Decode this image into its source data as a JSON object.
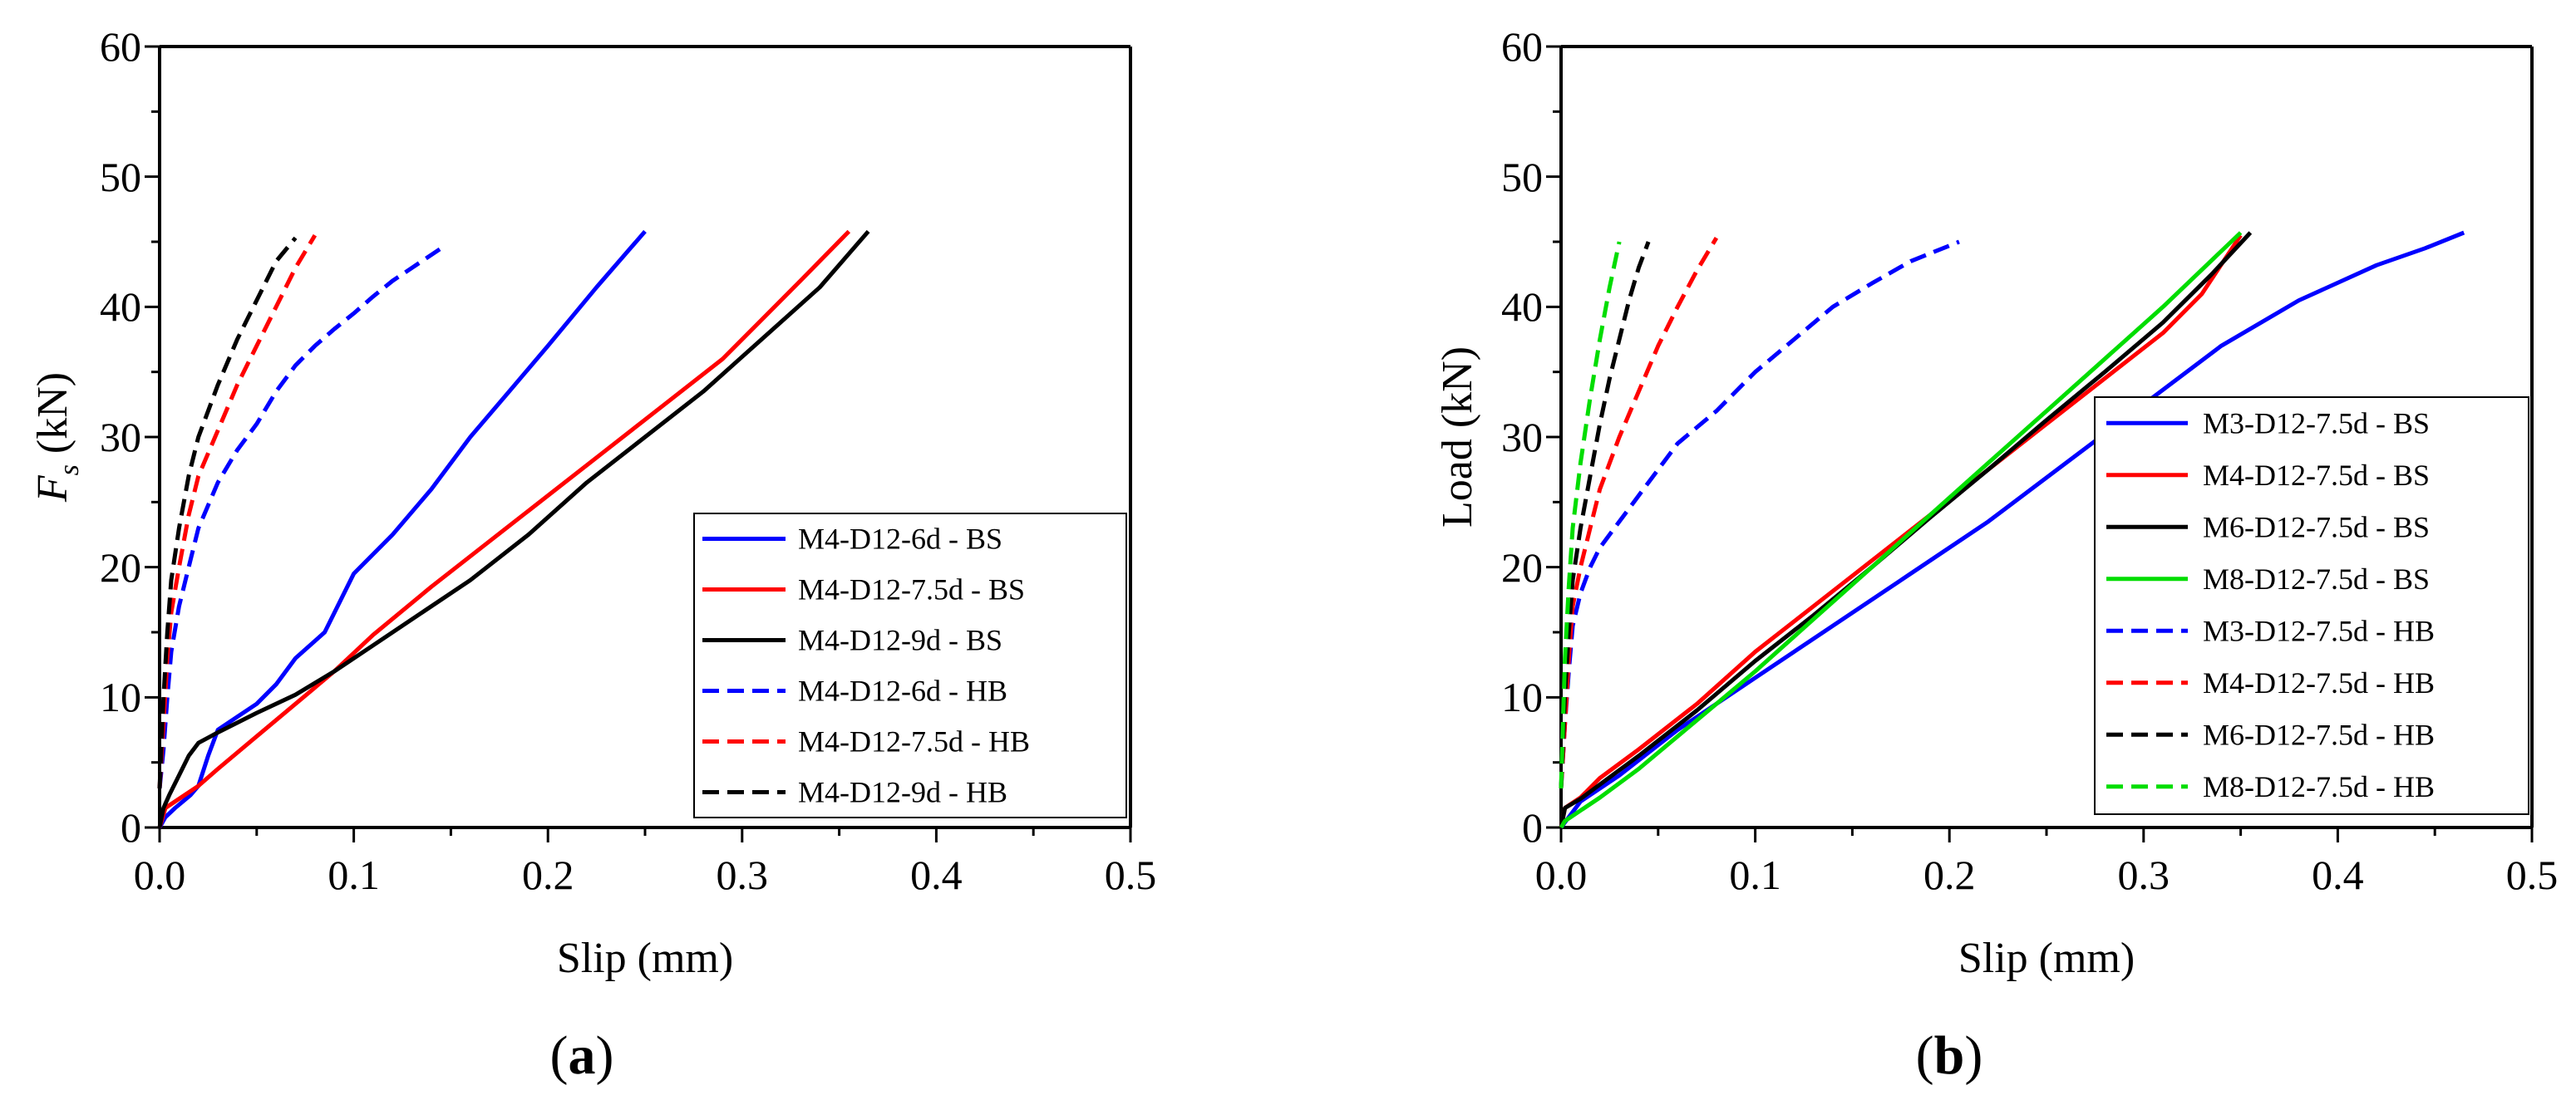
{
  "chart_data": [
    {
      "id": "a",
      "type": "line",
      "panel_label": "a",
      "xlabel": "Slip (mm)",
      "ylabel_main": "F",
      "ylabel_sub": "s",
      "ylabel_unit": " (kN)",
      "xlim": [
        0,
        0.5
      ],
      "ylim": [
        0,
        60
      ],
      "xticks": [
        "0.0",
        "0.1",
        "0.2",
        "0.3",
        "0.4",
        "0.5"
      ],
      "yticks": [
        "0",
        "10",
        "20",
        "30",
        "40",
        "50",
        "60"
      ],
      "legend_position": "bottom-right",
      "series": [
        {
          "name": "M4-D12-6d - BS",
          "color": "#0000ff",
          "dash": "solid",
          "points": [
            [
              0,
              0
            ],
            [
              0.003,
              0.8
            ],
            [
              0.008,
              1.5
            ],
            [
              0.012,
              2.0
            ],
            [
              0.016,
              2.5
            ],
            [
              0.02,
              3.2
            ],
            [
              0.025,
              5.5
            ],
            [
              0.03,
              7.5
            ],
            [
              0.04,
              8.5
            ],
            [
              0.05,
              9.5
            ],
            [
              0.06,
              11.0
            ],
            [
              0.07,
              13.0
            ],
            [
              0.085,
              15.0
            ],
            [
              0.1,
              19.5
            ],
            [
              0.12,
              22.5
            ],
            [
              0.14,
              26.0
            ],
            [
              0.16,
              30.0
            ],
            [
              0.18,
              33.5
            ],
            [
              0.2,
              37.0
            ],
            [
              0.225,
              41.5
            ],
            [
              0.25,
              45.8
            ]
          ]
        },
        {
          "name": "M4-D12-7.5d - BS",
          "color": "#ff0000",
          "dash": "solid",
          "points": [
            [
              0,
              0
            ],
            [
              0.003,
              1.5
            ],
            [
              0.01,
              2.2
            ],
            [
              0.02,
              3.2
            ],
            [
              0.03,
              4.5
            ],
            [
              0.05,
              7.0
            ],
            [
              0.07,
              9.5
            ],
            [
              0.09,
              12.0
            ],
            [
              0.11,
              14.8
            ],
            [
              0.14,
              18.5
            ],
            [
              0.17,
              22.0
            ],
            [
              0.2,
              25.5
            ],
            [
              0.23,
              29.0
            ],
            [
              0.26,
              32.5
            ],
            [
              0.29,
              36.0
            ],
            [
              0.31,
              39.0
            ],
            [
              0.33,
              42.0
            ],
            [
              0.355,
              45.8
            ]
          ]
        },
        {
          "name": "M4-D12-9d - BS",
          "color": "#000000",
          "dash": "solid",
          "points": [
            [
              0,
              0
            ],
            [
              0.002,
              1.5
            ],
            [
              0.005,
              2.5
            ],
            [
              0.01,
              4.0
            ],
            [
              0.015,
              5.5
            ],
            [
              0.02,
              6.5
            ],
            [
              0.03,
              7.3
            ],
            [
              0.05,
              8.8
            ],
            [
              0.07,
              10.2
            ],
            [
              0.09,
              12.0
            ],
            [
              0.11,
              14.0
            ],
            [
              0.13,
              16.0
            ],
            [
              0.16,
              19.0
            ],
            [
              0.19,
              22.5
            ],
            [
              0.22,
              26.5
            ],
            [
              0.25,
              30.0
            ],
            [
              0.28,
              33.5
            ],
            [
              0.31,
              37.5
            ],
            [
              0.34,
              41.5
            ],
            [
              0.365,
              45.8
            ]
          ]
        },
        {
          "name": "M4-D12-6d - HB",
          "color": "#0000ff",
          "dash": "dashed",
          "points": [
            [
              0,
              3.0
            ],
            [
              0.002,
              6.0
            ],
            [
              0.004,
              10.0
            ],
            [
              0.006,
              13.5
            ],
            [
              0.01,
              17.0
            ],
            [
              0.015,
              20.0
            ],
            [
              0.02,
              23.0
            ],
            [
              0.03,
              26.5
            ],
            [
              0.04,
              29.0
            ],
            [
              0.05,
              31.0
            ],
            [
              0.06,
              33.5
            ],
            [
              0.07,
              35.5
            ],
            [
              0.08,
              37.0
            ],
            [
              0.09,
              38.3
            ],
            [
              0.1,
              39.5
            ],
            [
              0.11,
              40.8
            ],
            [
              0.12,
              42.0
            ],
            [
              0.13,
              43.0
            ],
            [
              0.145,
              44.5
            ]
          ]
        },
        {
          "name": "M4-D12-7.5d - HB",
          "color": "#ff0000",
          "dash": "dashed",
          "points": [
            [
              0,
              3.0
            ],
            [
              0.002,
              8.0
            ],
            [
              0.004,
              13.0
            ],
            [
              0.006,
              16.5
            ],
            [
              0.01,
              20.0
            ],
            [
              0.015,
              24.0
            ],
            [
              0.02,
              27.0
            ],
            [
              0.03,
              30.5
            ],
            [
              0.04,
              34.0
            ],
            [
              0.05,
              37.0
            ],
            [
              0.06,
              40.0
            ],
            [
              0.07,
              43.0
            ],
            [
              0.08,
              45.5
            ]
          ]
        },
        {
          "name": "M4-D12-9d - HB",
          "color": "#000000",
          "dash": "dashed",
          "points": [
            [
              0,
              3.0
            ],
            [
              0.002,
              10.0
            ],
            [
              0.004,
              15.0
            ],
            [
              0.006,
              19.0
            ],
            [
              0.01,
              23.0
            ],
            [
              0.015,
              27.0
            ],
            [
              0.02,
              30.0
            ],
            [
              0.03,
              34.0
            ],
            [
              0.04,
              37.5
            ],
            [
              0.05,
              40.5
            ],
            [
              0.06,
              43.5
            ],
            [
              0.07,
              45.3
            ]
          ]
        }
      ]
    },
    {
      "id": "b",
      "type": "line",
      "panel_label": "b",
      "xlabel": "Slip (mm)",
      "ylabel": "Load (kN)",
      "xlim": [
        0,
        0.5
      ],
      "ylim": [
        0,
        60
      ],
      "xticks": [
        "0.0",
        "0.1",
        "0.2",
        "0.3",
        "0.4",
        "0.5"
      ],
      "yticks": [
        "0",
        "10",
        "20",
        "30",
        "40",
        "50",
        "60"
      ],
      "legend_position": "right",
      "series": [
        {
          "name": "M3-D12-7.5d - BS",
          "color": "#0000ff",
          "dash": "solid",
          "points": [
            [
              0,
              0
            ],
            [
              0.01,
              2.0
            ],
            [
              0.03,
              4.0
            ],
            [
              0.06,
              7.5
            ],
            [
              0.1,
              11.5
            ],
            [
              0.14,
              15.5
            ],
            [
              0.18,
              19.5
            ],
            [
              0.22,
              23.5
            ],
            [
              0.26,
              28.0
            ],
            [
              0.3,
              32.5
            ],
            [
              0.34,
              37.0
            ],
            [
              0.38,
              40.5
            ],
            [
              0.42,
              43.2
            ],
            [
              0.445,
              44.5
            ],
            [
              0.465,
              45.7
            ]
          ]
        },
        {
          "name": "M4-D12-7.5d - BS",
          "color": "#ff0000",
          "dash": "solid",
          "points": [
            [
              0,
              0
            ],
            [
              0.002,
              1.5
            ],
            [
              0.01,
              2.3
            ],
            [
              0.02,
              3.8
            ],
            [
              0.04,
              6.0
            ],
            [
              0.07,
              9.5
            ],
            [
              0.1,
              13.5
            ],
            [
              0.13,
              17.0
            ],
            [
              0.16,
              20.5
            ],
            [
              0.19,
              24.0
            ],
            [
              0.22,
              27.5
            ],
            [
              0.25,
              31.0
            ],
            [
              0.28,
              34.5
            ],
            [
              0.31,
              38.0
            ],
            [
              0.33,
              41.0
            ],
            [
              0.35,
              45.5
            ]
          ]
        },
        {
          "name": "M6-D12-7.5d - BS",
          "color": "#000000",
          "dash": "solid",
          "points": [
            [
              0,
              0
            ],
            [
              0.002,
              1.5
            ],
            [
              0.01,
              2.2
            ],
            [
              0.02,
              3.3
            ],
            [
              0.04,
              5.5
            ],
            [
              0.07,
              9.0
            ],
            [
              0.1,
              12.8
            ],
            [
              0.13,
              16.3
            ],
            [
              0.16,
              20.0
            ],
            [
              0.19,
              23.8
            ],
            [
              0.22,
              27.5
            ],
            [
              0.25,
              31.3
            ],
            [
              0.28,
              35.0
            ],
            [
              0.31,
              38.8
            ],
            [
              0.335,
              42.5
            ],
            [
              0.355,
              45.7
            ]
          ]
        },
        {
          "name": "M8-D12-7.5d - BS",
          "color": "#00dd00",
          "dash": "solid",
          "points": [
            [
              0,
              0
            ],
            [
              0.002,
              0.5
            ],
            [
              0.01,
              1.3
            ],
            [
              0.02,
              2.3
            ],
            [
              0.04,
              4.5
            ],
            [
              0.06,
              7.0
            ],
            [
              0.08,
              9.5
            ],
            [
              0.1,
              12.0
            ],
            [
              0.13,
              16.0
            ],
            [
              0.16,
              20.0
            ],
            [
              0.19,
              24.0
            ],
            [
              0.22,
              28.0
            ],
            [
              0.25,
              32.0
            ],
            [
              0.28,
              36.0
            ],
            [
              0.31,
              40.0
            ],
            [
              0.35,
              45.7
            ]
          ]
        },
        {
          "name": "M3-D12-7.5d - HB",
          "color": "#0000ff",
          "dash": "dashed",
          "points": [
            [
              0,
              3.0
            ],
            [
              0.002,
              8.0
            ],
            [
              0.004,
              12.0
            ],
            [
              0.006,
              15.5
            ],
            [
              0.01,
              18.0
            ],
            [
              0.015,
              20.0
            ],
            [
              0.02,
              21.5
            ],
            [
              0.03,
              23.5
            ],
            [
              0.04,
              25.5
            ],
            [
              0.05,
              27.5
            ],
            [
              0.06,
              29.5
            ],
            [
              0.08,
              32.0
            ],
            [
              0.1,
              35.0
            ],
            [
              0.12,
              37.5
            ],
            [
              0.14,
              40.0
            ],
            [
              0.16,
              41.8
            ],
            [
              0.18,
              43.5
            ],
            [
              0.205,
              45.0
            ]
          ]
        },
        {
          "name": "M4-D12-7.5d - HB",
          "color": "#ff0000",
          "dash": "dashed",
          "points": [
            [
              0,
              3.0
            ],
            [
              0.002,
              8.0
            ],
            [
              0.004,
              13.0
            ],
            [
              0.006,
              17.0
            ],
            [
              0.01,
              20.0
            ],
            [
              0.015,
              23.0
            ],
            [
              0.02,
              26.0
            ],
            [
              0.03,
              30.0
            ],
            [
              0.04,
              33.5
            ],
            [
              0.05,
              37.0
            ],
            [
              0.06,
              40.0
            ],
            [
              0.07,
              42.8
            ],
            [
              0.08,
              45.3
            ]
          ]
        },
        {
          "name": "M6-D12-7.5d - HB",
          "color": "#000000",
          "dash": "dashed",
          "points": [
            [
              0,
              3.0
            ],
            [
              0.002,
              10.0
            ],
            [
              0.004,
              15.0
            ],
            [
              0.006,
              19.0
            ],
            [
              0.01,
              23.0
            ],
            [
              0.015,
              27.0
            ],
            [
              0.02,
              31.0
            ],
            [
              0.025,
              34.5
            ],
            [
              0.03,
              37.5
            ],
            [
              0.035,
              40.5
            ],
            [
              0.04,
              43.0
            ],
            [
              0.045,
              45.0
            ]
          ]
        },
        {
          "name": "M8-D12-7.5d - HB",
          "color": "#00dd00",
          "dash": "dashed",
          "points": [
            [
              0,
              3.0
            ],
            [
              0.001,
              8.0
            ],
            [
              0.002,
              13.0
            ],
            [
              0.004,
              18.5
            ],
            [
              0.006,
              23.0
            ],
            [
              0.01,
              28.0
            ],
            [
              0.015,
              33.0
            ],
            [
              0.02,
              37.5
            ],
            [
              0.025,
              41.5
            ],
            [
              0.03,
              45.0
            ]
          ]
        }
      ]
    }
  ]
}
